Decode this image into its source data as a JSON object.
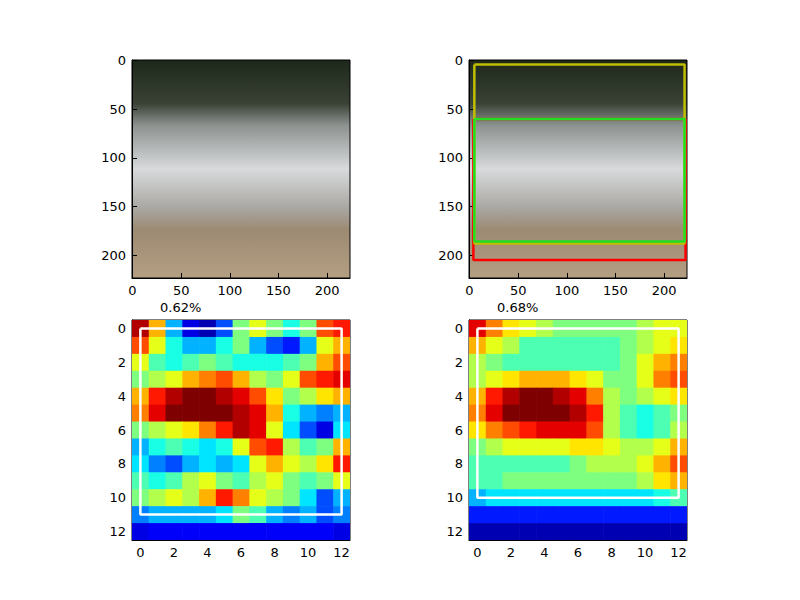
{
  "chart_data": [
    {
      "type": "image",
      "xlim": [
        -0.5,
        223.5
      ],
      "ylim": [
        223.5,
        -0.5
      ],
      "xticks": [
        0,
        50,
        100,
        150,
        200
      ],
      "yticks": [
        0,
        50,
        100,
        150,
        200
      ]
    },
    {
      "type": "image",
      "xlim": [
        -0.5,
        223.5
      ],
      "ylim": [
        223.5,
        -0.5
      ],
      "xticks": [
        0,
        50,
        100,
        150,
        200
      ],
      "yticks": [
        0,
        50,
        100,
        150,
        200
      ],
      "boxes": [
        {
          "color": "#ff0000",
          "x": [
            4,
            222
          ],
          "y": [
            60,
            205
          ]
        },
        {
          "color": "#bfbf00",
          "x": [
            5,
            221
          ],
          "y": [
            4,
            188
          ]
        },
        {
          "color": "#22dd22",
          "x": [
            5,
            221
          ],
          "y": [
            60,
            186
          ]
        }
      ]
    },
    {
      "type": "heatmap",
      "title": "0.62%",
      "xlim": [
        -0.5,
        12.5
      ],
      "ylim": [
        12.5,
        -0.5
      ],
      "xticks": [
        0,
        2,
        4,
        6,
        8,
        10,
        12
      ],
      "yticks": [
        0,
        2,
        4,
        6,
        8,
        10,
        12
      ],
      "value_range": [
        0,
        1
      ],
      "cells": [
        [
          0.95,
          0.7,
          0.3,
          0.1,
          0.05,
          0.2,
          0.5,
          0.6,
          0.5,
          0.4,
          0.5,
          0.8,
          0.85
        ],
        [
          0.8,
          0.6,
          0.4,
          0.3,
          0.3,
          0.4,
          0.5,
          0.3,
          0.2,
          0.15,
          0.3,
          0.6,
          0.7
        ],
        [
          0.6,
          0.45,
          0.4,
          0.45,
          0.5,
          0.45,
          0.4,
          0.4,
          0.4,
          0.45,
          0.5,
          0.7,
          0.8
        ],
        [
          0.5,
          0.55,
          0.6,
          0.7,
          0.75,
          0.8,
          0.7,
          0.55,
          0.5,
          0.6,
          0.8,
          0.85,
          0.9
        ],
        [
          0.7,
          0.85,
          0.95,
          1.0,
          1.0,
          0.95,
          0.9,
          0.8,
          0.65,
          0.5,
          0.55,
          0.65,
          0.7
        ],
        [
          0.75,
          0.9,
          1.0,
          1.0,
          1.0,
          1.0,
          0.95,
          0.9,
          0.7,
          0.4,
          0.3,
          0.25,
          0.3
        ],
        [
          0.5,
          0.55,
          0.6,
          0.65,
          0.75,
          0.85,
          0.95,
          0.9,
          0.6,
          0.35,
          0.2,
          0.1,
          0.35
        ],
        [
          0.3,
          0.4,
          0.45,
          0.4,
          0.35,
          0.4,
          0.6,
          0.8,
          0.85,
          0.55,
          0.45,
          0.5,
          0.7
        ],
        [
          0.35,
          0.25,
          0.2,
          0.3,
          0.35,
          0.3,
          0.35,
          0.6,
          0.7,
          0.6,
          0.55,
          0.65,
          0.85
        ],
        [
          0.45,
          0.4,
          0.45,
          0.55,
          0.6,
          0.5,
          0.45,
          0.55,
          0.6,
          0.5,
          0.45,
          0.5,
          0.6
        ],
        [
          0.5,
          0.55,
          0.6,
          0.55,
          0.7,
          0.85,
          0.75,
          0.6,
          0.55,
          0.5,
          0.35,
          0.2,
          0.3
        ],
        [
          0.25,
          0.3,
          0.3,
          0.3,
          0.3,
          0.35,
          0.5,
          0.45,
          0.3,
          0.25,
          0.3,
          0.2,
          0.25
        ],
        [
          0.1,
          0.12,
          0.12,
          0.12,
          0.12,
          0.12,
          0.12,
          0.12,
          0.12,
          0.12,
          0.12,
          0.12,
          0.1
        ]
      ],
      "boxes": [
        {
          "color": "#ffffff",
          "x": [
            0,
            12
          ],
          "y": [
            0,
            11
          ]
        }
      ]
    },
    {
      "type": "heatmap",
      "title": "0.68%",
      "xlim": [
        -0.5,
        12.5
      ],
      "ylim": [
        12.5,
        -0.5
      ],
      "xticks": [
        0,
        2,
        4,
        6,
        8,
        10,
        12
      ],
      "yticks": [
        0,
        2,
        4,
        6,
        8,
        10,
        12
      ],
      "value_range": [
        0,
        1
      ],
      "cells": [
        [
          0.9,
          0.75,
          0.65,
          0.6,
          0.55,
          0.5,
          0.5,
          0.5,
          0.5,
          0.5,
          0.55,
          0.6,
          0.6
        ],
        [
          0.7,
          0.6,
          0.55,
          0.45,
          0.45,
          0.45,
          0.45,
          0.45,
          0.45,
          0.5,
          0.55,
          0.6,
          0.65
        ],
        [
          0.55,
          0.5,
          0.45,
          0.45,
          0.45,
          0.45,
          0.45,
          0.45,
          0.45,
          0.5,
          0.6,
          0.7,
          0.75
        ],
        [
          0.55,
          0.6,
          0.65,
          0.7,
          0.7,
          0.7,
          0.65,
          0.6,
          0.5,
          0.5,
          0.6,
          0.75,
          0.8
        ],
        [
          0.7,
          0.85,
          0.95,
          1.0,
          1.0,
          0.95,
          0.9,
          0.75,
          0.55,
          0.5,
          0.55,
          0.6,
          0.65
        ],
        [
          0.75,
          0.9,
          1.0,
          1.0,
          1.0,
          1.0,
          0.95,
          0.85,
          0.55,
          0.45,
          0.4,
          0.45,
          0.5
        ],
        [
          0.65,
          0.75,
          0.8,
          0.85,
          0.9,
          0.9,
          0.9,
          0.8,
          0.55,
          0.45,
          0.4,
          0.45,
          0.55
        ],
        [
          0.5,
          0.55,
          0.6,
          0.6,
          0.6,
          0.6,
          0.65,
          0.65,
          0.6,
          0.55,
          0.55,
          0.6,
          0.7
        ],
        [
          0.45,
          0.45,
          0.45,
          0.45,
          0.45,
          0.45,
          0.5,
          0.55,
          0.55,
          0.55,
          0.6,
          0.7,
          0.8
        ],
        [
          0.45,
          0.45,
          0.5,
          0.5,
          0.5,
          0.5,
          0.5,
          0.5,
          0.5,
          0.5,
          0.55,
          0.65,
          0.7
        ],
        [
          0.3,
          0.35,
          0.35,
          0.35,
          0.35,
          0.35,
          0.35,
          0.35,
          0.35,
          0.35,
          0.35,
          0.4,
          0.45
        ],
        [
          0.15,
          0.15,
          0.15,
          0.15,
          0.15,
          0.15,
          0.15,
          0.15,
          0.15,
          0.15,
          0.15,
          0.15,
          0.15
        ],
        [
          0.05,
          0.05,
          0.05,
          0.05,
          0.05,
          0.05,
          0.05,
          0.05,
          0.05,
          0.05,
          0.05,
          0.05,
          0.05
        ]
      ],
      "boxes": [
        {
          "color": "#ffffff",
          "x": [
            0,
            12
          ],
          "y": [
            0,
            10
          ]
        }
      ]
    }
  ]
}
